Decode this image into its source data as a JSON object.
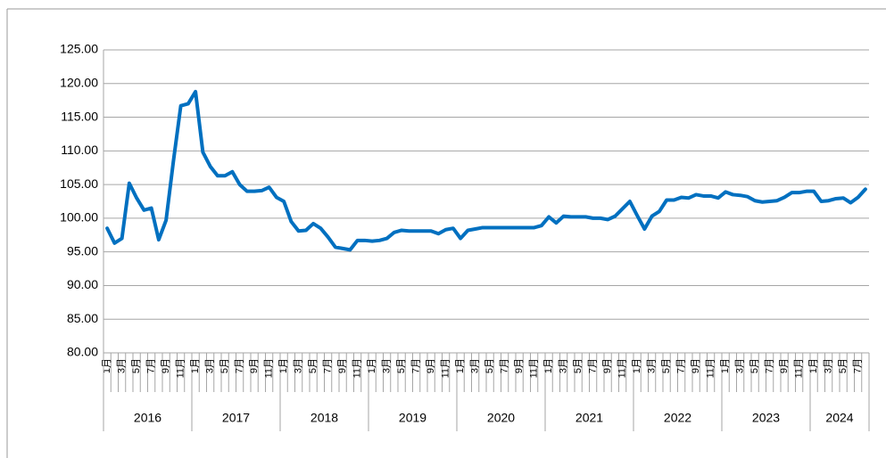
{
  "chart_data": {
    "type": "line",
    "categories": [
      "1月",
      null,
      "3月",
      null,
      "5月",
      null,
      "7月",
      null,
      "9月",
      null,
      "11月",
      null,
      "1月",
      null,
      "3月",
      null,
      "5月",
      null,
      "7月",
      null,
      "9月",
      null,
      "11月",
      null,
      "1月",
      null,
      "3月",
      null,
      "5月",
      null,
      "7月",
      null,
      "9月",
      null,
      "11月",
      null,
      "1月",
      null,
      "3月",
      null,
      "5月",
      null,
      "7月",
      null,
      "9月",
      null,
      "11月",
      null,
      "1月",
      null,
      "3月",
      null,
      "5月",
      null,
      "7月",
      null,
      "9月",
      null,
      "11月",
      null,
      "1月",
      null,
      "3月",
      null,
      "5月",
      null,
      "7月",
      null,
      "9月",
      null,
      "11月",
      null,
      "1月",
      null,
      "3月",
      null,
      "5月",
      null,
      "7月",
      null,
      "9月",
      null,
      "11月",
      null,
      "1月",
      null,
      "3月",
      null,
      "5月",
      null,
      "7月",
      null,
      "9月",
      null,
      "11月",
      null,
      "1月",
      null,
      "3月",
      null,
      "5月",
      null,
      "7月",
      null
    ],
    "groups": [
      {
        "label": "2016",
        "count": 12
      },
      {
        "label": "2017",
        "count": 12
      },
      {
        "label": "2018",
        "count": 12
      },
      {
        "label": "2019",
        "count": 12
      },
      {
        "label": "2020",
        "count": 12
      },
      {
        "label": "2021",
        "count": 12
      },
      {
        "label": "2022",
        "count": 12
      },
      {
        "label": "2023",
        "count": 12
      },
      {
        "label": "2024",
        "count": 8
      }
    ],
    "values": [
      98.5,
      96.3,
      97.0,
      105.2,
      103.0,
      101.2,
      101.5,
      96.8,
      99.7,
      108.5,
      116.7,
      117.0,
      118.8,
      109.8,
      107.7,
      106.3,
      106.3,
      106.9,
      105.0,
      104.0,
      104.0,
      104.1,
      104.6,
      103.1,
      102.5,
      99.5,
      98.1,
      98.2,
      99.2,
      98.5,
      97.2,
      95.7,
      95.5,
      95.3,
      96.7,
      96.7,
      96.6,
      96.7,
      97.0,
      97.9,
      98.2,
      98.1,
      98.1,
      98.1,
      98.1,
      97.7,
      98.3,
      98.5,
      97.0,
      98.2,
      98.4,
      98.6,
      98.6,
      98.6,
      98.6,
      98.6,
      98.6,
      98.6,
      98.6,
      98.9,
      100.2,
      99.3,
      100.3,
      100.2,
      100.2,
      100.2,
      100.0,
      100.0,
      99.8,
      100.3,
      101.4,
      102.5,
      100.4,
      98.4,
      100.3,
      101.0,
      102.7,
      102.7,
      103.1,
      103.0,
      103.5,
      103.3,
      103.3,
      103.0,
      103.9,
      103.5,
      103.4,
      103.2,
      102.6,
      102.4,
      102.5,
      102.6,
      103.1,
      103.8,
      103.8,
      104.0,
      104.0,
      102.5,
      102.6,
      102.9,
      103.0,
      102.3,
      103.1,
      104.3
    ],
    "color": "#0070c0",
    "ylim": [
      80,
      125
    ],
    "yticks": [
      {
        "value": 80,
        "label": "80.00"
      },
      {
        "value": 85,
        "label": "85.00"
      },
      {
        "value": 90,
        "label": "90.00"
      },
      {
        "value": 95,
        "label": "95.00"
      },
      {
        "value": 100,
        "label": "100.00"
      },
      {
        "value": 105,
        "label": "105.00"
      },
      {
        "value": 110,
        "label": "110.00"
      },
      {
        "value": 115,
        "label": "115.00"
      },
      {
        "value": 120,
        "label": "120.00"
      },
      {
        "value": 125,
        "label": "125.00"
      }
    ],
    "grid": true
  }
}
